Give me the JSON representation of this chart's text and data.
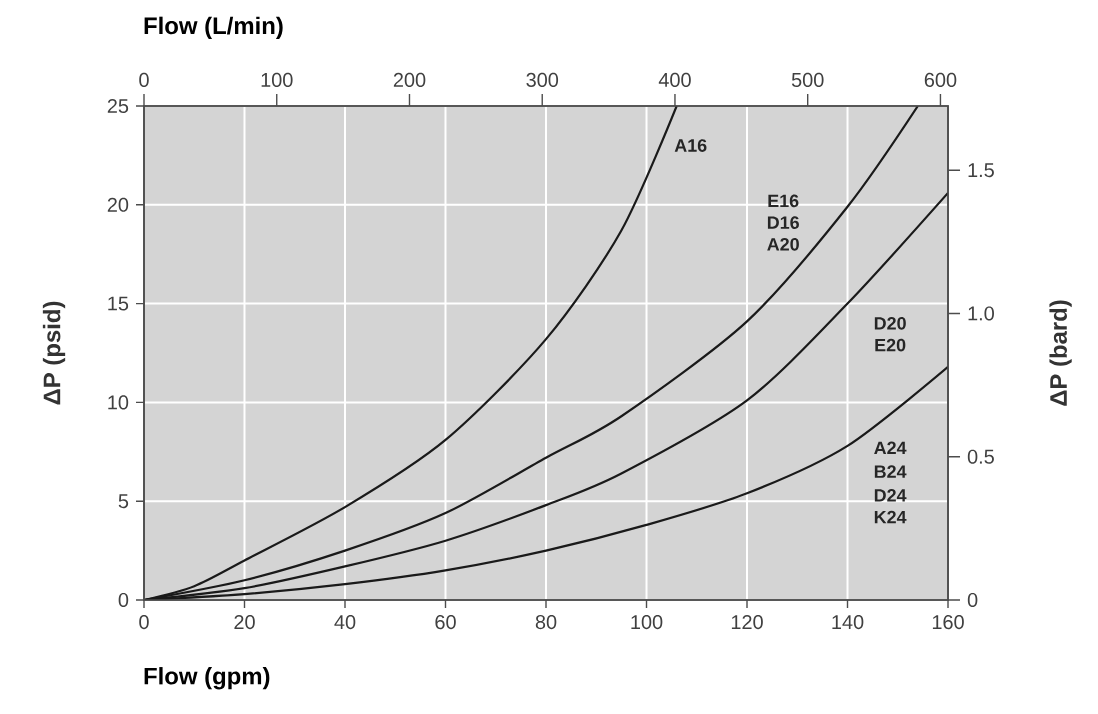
{
  "chart_data": {
    "type": "line",
    "xlabel": "Flow (gpm)",
    "ylabel": "ΔP (psid)",
    "x2label": "Flow (L/min)",
    "y2label": "ΔP (bard)",
    "xlim": [
      0,
      160
    ],
    "xticks": [
      0,
      20,
      40,
      60,
      80,
      100,
      120,
      140,
      160
    ],
    "ylim": [
      0,
      25
    ],
    "yticks": [
      0,
      5,
      10,
      15,
      20,
      25
    ],
    "x2lim": [
      0,
      605.7
    ],
    "x2ticks": [
      0,
      100,
      200,
      300,
      400,
      500,
      600
    ],
    "y2lim": [
      0,
      1.724
    ],
    "y2ticks": [
      0,
      0.5,
      {
        "value": 1.0,
        "label": "1.0"
      },
      1.5
    ],
    "grid": true,
    "series": [
      {
        "color": "#1a1a1a",
        "x": [
          0,
          10,
          20,
          40,
          60,
          80,
          95,
          106
        ],
        "values": [
          0,
          0.7,
          2.0,
          4.7,
          8.1,
          13.2,
          18.7,
          25
        ]
      },
      {
        "color": "#1a1a1a",
        "x": [
          0,
          20,
          40,
          60,
          80,
          95,
          120,
          140,
          154
        ],
        "values": [
          0,
          1.0,
          2.5,
          4.4,
          7.2,
          9.3,
          14.1,
          19.9,
          25
        ]
      },
      {
        "color": "#1a1a1a",
        "x": [
          0,
          20,
          40,
          60,
          80,
          95,
          120,
          140,
          160
        ],
        "values": [
          0,
          0.6,
          1.7,
          3.0,
          4.8,
          6.4,
          10.1,
          15.0,
          20.6
        ]
      },
      {
        "color": "#1a1a1a",
        "x": [
          0,
          20,
          40,
          60,
          80,
          100,
          120,
          140,
          160
        ],
        "values": [
          0,
          0.3,
          0.8,
          1.5,
          2.5,
          3.8,
          5.4,
          7.8,
          11.8
        ]
      }
    ],
    "annotations": [
      "A16",
      "E16",
      "D16",
      "A20",
      "D20",
      "E20",
      "A24",
      "B24",
      "D24",
      "K24"
    ]
  }
}
